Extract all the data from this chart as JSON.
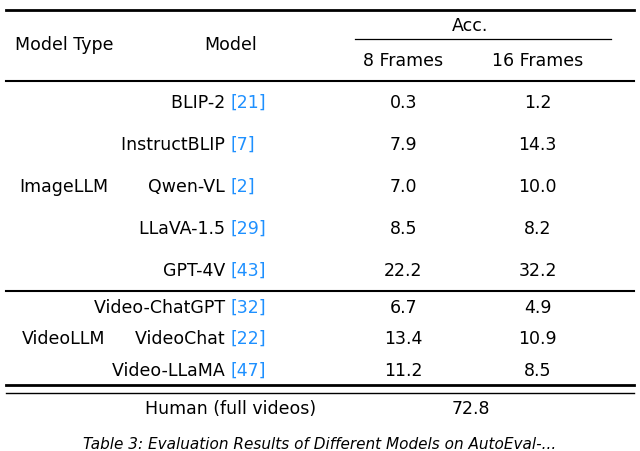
{
  "rows": [
    {
      "model_text": "BLIP-2 ",
      "model_ref": "[21]",
      "val_8": "0.3",
      "val_16": "1.2"
    },
    {
      "model_text": "InstructBLIP ",
      "model_ref": "[7]",
      "val_8": "7.9",
      "val_16": "14.3"
    },
    {
      "model_text": "Qwen-VL ",
      "model_ref": "[2]",
      "val_8": "7.0",
      "val_16": "10.0"
    },
    {
      "model_text": "LLaVA-1.5 ",
      "model_ref": "[29]",
      "val_8": "8.5",
      "val_16": "8.2"
    },
    {
      "model_text": "GPT-4V ",
      "model_ref": "[43]",
      "val_8": "22.2",
      "val_16": "32.2"
    },
    {
      "model_text": "Video-ChatGPT ",
      "model_ref": "[32]",
      "val_8": "6.7",
      "val_16": "4.9"
    },
    {
      "model_text": "VideoChat ",
      "model_ref": "[22]",
      "val_8": "13.4",
      "val_16": "10.9"
    },
    {
      "model_text": "Video-LLaMA ",
      "model_ref": "[47]",
      "val_8": "11.2",
      "val_16": "8.5"
    }
  ],
  "human_label": "Human (full videos)",
  "human_value": "72.8",
  "imagellm_label": "ImageLLM",
  "videollm_label": "VideoLLM",
  "ref_color": "#1E90FF",
  "text_color": "#000000",
  "bg_color": "#ffffff",
  "caption": "Table 3: Evaluation Results of Different Models on AutoEval-...",
  "fontsize": 12.5,
  "caption_fontsize": 11
}
